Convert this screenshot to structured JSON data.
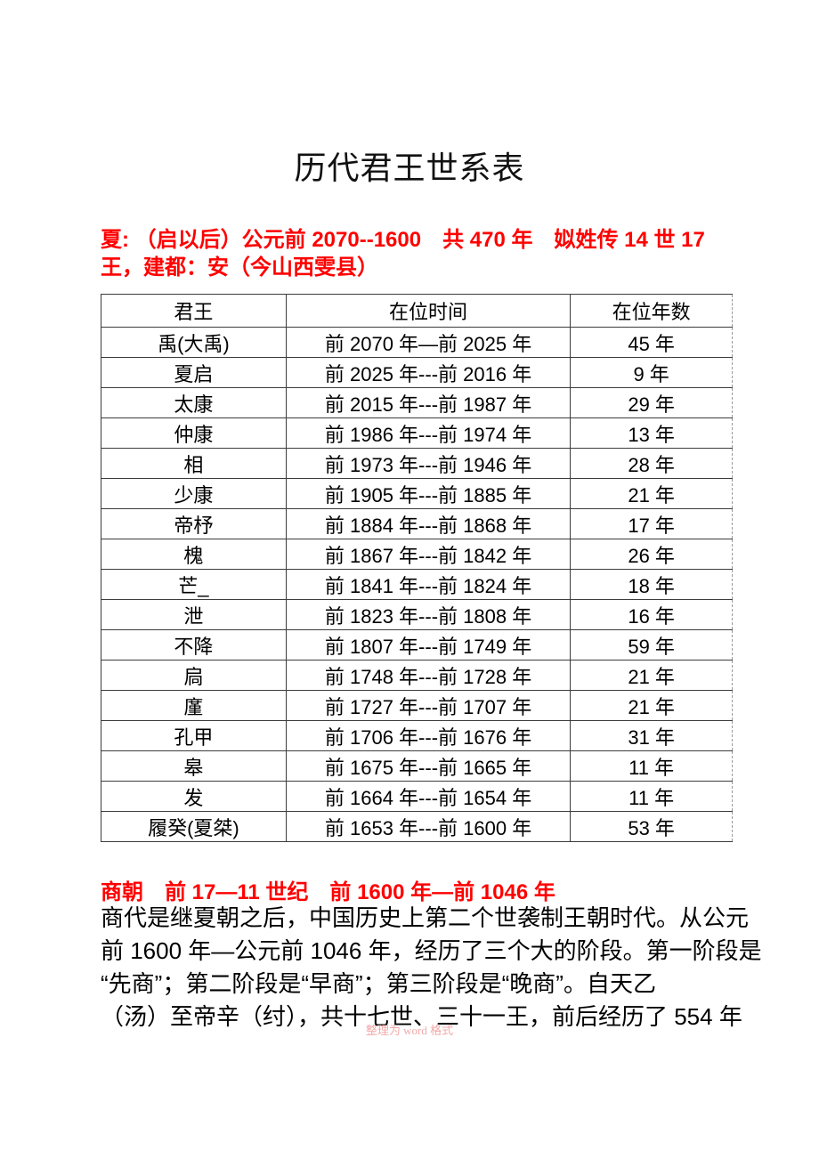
{
  "doc": {
    "title": "历代君王世系表"
  },
  "xia_heading": {
    "line1": "夏: （启以后）公元前 2070--1600　共 470 年　姒姓传 14 世 17",
    "line2": "王，建都：安（今山西雯县）"
  },
  "table": {
    "columns": [
      "君王",
      "在位时间",
      "在位年数"
    ],
    "rows": [
      [
        "禹(大禹)",
        "前 2070 年—前 2025 年",
        "45 年"
      ],
      [
        "夏启",
        "前 2025 年---前 2016 年",
        "9 年"
      ],
      [
        "太康",
        "前 2015 年---前 1987 年",
        "29 年"
      ],
      [
        "仲康",
        "前 1986 年---前 1974 年",
        "13 年"
      ],
      [
        "相",
        "前 1973 年---前 1946 年",
        "28 年"
      ],
      [
        "少康",
        "前 1905 年---前 1885 年",
        "21 年"
      ],
      [
        "帝杼",
        "前 1884 年---前 1868 年",
        "17 年"
      ],
      [
        "槐",
        "前 1867 年---前 1842 年",
        "26 年"
      ],
      [
        "芒_",
        "前 1841 年---前 1824 年",
        "18 年"
      ],
      [
        "泄",
        "前 1823 年---前 1808 年",
        "16 年"
      ],
      [
        "不降",
        "前 1807 年---前 1749 年",
        "59 年"
      ],
      [
        "扃",
        "前 1748 年---前 1728 年",
        "21 年"
      ],
      [
        "廑",
        "前 1727 年---前 1707 年",
        "21 年"
      ],
      [
        "孔甲",
        "前 1706 年---前 1676 年",
        "31 年"
      ],
      [
        "皋",
        "前 1675 年---前 1665 年",
        "11 年"
      ],
      [
        "发",
        "前 1664 年---前 1654 年",
        "11 年"
      ],
      [
        "履癸(夏桀)",
        "前 1653 年---前 1600 年",
        "53 年"
      ]
    ]
  },
  "shang": {
    "heading": "商朝　前 17—11 世纪　前 1600 年—前 1046 年",
    "paragraph_lines": [
      "商代是继夏朝之后，中国历史上第二个世袭制王朝时代。从公元",
      "前 1600 年—公元前 1046 年，经历了三个大的阶段。第一阶段是",
      "“先商”；第二阶段是“早商”；第三阶段是“晚商”。自天乙",
      "（汤）至帝辛（纣），共十七世、三十一王，前后经历了 554 年"
    ]
  },
  "footer": {
    "watermark": "整理为 word 格式"
  },
  "colors": {
    "heading_red": "#FF0000",
    "watermark_pink": "#F2A9A9",
    "table_border": "#3C3C3C"
  }
}
